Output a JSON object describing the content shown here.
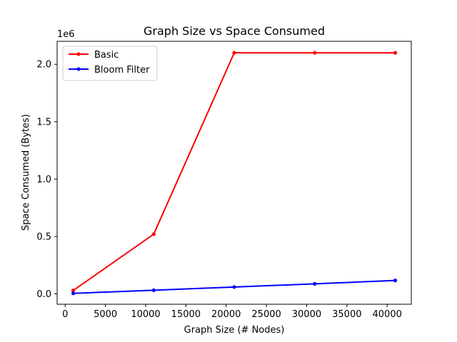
{
  "chart_data": {
    "type": "line",
    "title": "Graph Size vs Space Consumed",
    "xlabel": "Graph Size (# Nodes)",
    "ylabel": "Space Consumed (Bytes)",
    "y_offset_label": "1e6",
    "xlim": [
      -1000,
      43000
    ],
    "ylim": [
      -90000,
      2200000
    ],
    "xticks": [
      0,
      5000,
      10000,
      15000,
      20000,
      25000,
      30000,
      35000,
      40000
    ],
    "xtick_labels": [
      "0",
      "5000",
      "10000",
      "15000",
      "20000",
      "25000",
      "30000",
      "35000",
      "40000"
    ],
    "yticks": [
      0,
      500000,
      1000000,
      1500000,
      2000000
    ],
    "ytick_labels": [
      "0.0",
      "0.5",
      "1.0",
      "1.5",
      "2.0"
    ],
    "x": [
      1000,
      11000,
      21000,
      31000,
      41000
    ],
    "series": [
      {
        "name": "Basic",
        "color": "#ff0000",
        "values": [
          30000,
          520000,
          2100000,
          2100000,
          2100000
        ]
      },
      {
        "name": "Bloom Filter",
        "color": "#0000ff",
        "values": [
          5000,
          32000,
          60000,
          88000,
          117000
        ]
      }
    ],
    "legend_position": "top-left",
    "grid": false
  }
}
